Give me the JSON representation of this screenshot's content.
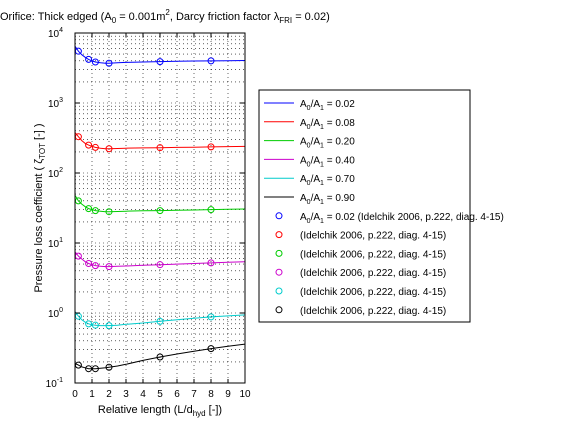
{
  "chart_data": {
    "type": "line",
    "title": "Orifice: Thick edged (A0 = 0.001m2, Darcy friction factor λFRI = 0.02)",
    "title_parts": {
      "p1": "Orifice: Thick edged (A",
      "p1_sub": "0",
      "p2": " = 0.001m",
      "p2_sup": "2",
      "p3": ", Darcy friction factor λ",
      "p3_sub": "FRI",
      "p4": " = 0.02)"
    },
    "xlabel": "Relative length (L/dhyd [-])",
    "xlabel_parts": {
      "main": "Relative length (L/d",
      "sub": "hyd",
      "tail": " [-])"
    },
    "ylabel": "Pressure loss coefficient (ζTOT [-])",
    "ylabel_parts": {
      "main": "Pressure loss coefficient ( ζ",
      "sub": "TOT",
      "tail": " [-] )"
    },
    "x_ticks": [
      "0",
      "1",
      "2",
      "3",
      "4",
      "5",
      "6",
      "7",
      "8",
      "9",
      "10"
    ],
    "y_ticks": [
      {
        "base": "10",
        "exp": "-1"
      },
      {
        "base": "10",
        "exp": "0"
      },
      {
        "base": "10",
        "exp": "1"
      },
      {
        "base": "10",
        "exp": "2"
      },
      {
        "base": "10",
        "exp": "3"
      },
      {
        "base": "10",
        "exp": "4"
      }
    ],
    "xlim": [
      0,
      10
    ],
    "ylim": [
      0.1,
      10000
    ],
    "y_scale": "log",
    "grid": true,
    "legend_position": "right, outside plot",
    "series": [
      {
        "name": "A0/A1 = 0.02",
        "label_main": "A",
        "label_sub1": "0",
        "label_mid": "/A",
        "label_sub2": "1",
        "label_tail": " = 0.02",
        "color": "#0000ff",
        "x": [
          0.0,
          0.2,
          0.4,
          0.6,
          0.8,
          1.0,
          1.2,
          1.5,
          1.8,
          2.0,
          2.5,
          3,
          4,
          5,
          6,
          7,
          8,
          9,
          10
        ],
        "y": [
          6500,
          5500,
          4900,
          4500,
          4200,
          4000,
          3850,
          3750,
          3700,
          3700,
          3750,
          3800,
          3850,
          3900,
          3950,
          3980,
          4000,
          4020,
          4050
        ]
      },
      {
        "name": "A0/A1 = 0.08",
        "label_main": "A",
        "label_sub1": "0",
        "label_mid": "/A",
        "label_sub2": "1",
        "label_tail": " = 0.08",
        "color": "#ff0000",
        "x": [
          0.0,
          0.2,
          0.4,
          0.6,
          0.8,
          1.0,
          1.2,
          1.5,
          1.8,
          2.0,
          2.5,
          3,
          4,
          5,
          6,
          7,
          8,
          9,
          10
        ],
        "y": [
          380,
          330,
          290,
          265,
          250,
          240,
          232,
          225,
          222,
          222,
          224,
          226,
          228,
          230,
          232,
          234,
          236,
          238,
          240
        ]
      },
      {
        "name": "A0/A1 = 0.20",
        "label_main": "A",
        "label_sub1": "0",
        "label_mid": "/A",
        "label_sub2": "1",
        "label_tail": " = 0.20",
        "color": "#00cc00",
        "x": [
          0.0,
          0.2,
          0.4,
          0.6,
          0.8,
          1.0,
          1.2,
          1.5,
          1.8,
          2.0,
          2.5,
          3,
          4,
          5,
          6,
          7,
          8,
          9,
          10
        ],
        "y": [
          48,
          40,
          36,
          33,
          31,
          30,
          29,
          28.5,
          28,
          28,
          28.2,
          28.5,
          28.8,
          29,
          29.3,
          29.6,
          30,
          30.3,
          30.6
        ]
      },
      {
        "name": "A0/A1 = 0.40",
        "label_main": "A",
        "label_sub1": "0",
        "label_mid": "/A",
        "label_sub2": "1",
        "label_tail": " = 0.40",
        "color": "#cc00cc",
        "x": [
          0.0,
          0.2,
          0.4,
          0.6,
          0.8,
          1.0,
          1.2,
          1.5,
          1.8,
          2.0,
          2.5,
          3,
          4,
          5,
          6,
          7,
          8,
          9,
          10
        ],
        "y": [
          7.5,
          6.5,
          5.9,
          5.4,
          5.1,
          4.9,
          4.75,
          4.65,
          4.6,
          4.6,
          4.65,
          4.7,
          4.8,
          4.9,
          5.0,
          5.1,
          5.2,
          5.3,
          5.4
        ]
      },
      {
        "name": "A0/A1 = 0.70",
        "label_main": "A",
        "label_sub1": "0",
        "label_mid": "/A",
        "label_sub2": "1",
        "label_tail": " = 0.70",
        "color": "#00cccc",
        "x": [
          0.0,
          0.2,
          0.4,
          0.6,
          0.8,
          1.0,
          1.2,
          1.5,
          1.8,
          2.0,
          2.5,
          3,
          4,
          5,
          6,
          7,
          8,
          9,
          10
        ],
        "y": [
          1.05,
          0.9,
          0.8,
          0.74,
          0.7,
          0.68,
          0.67,
          0.66,
          0.66,
          0.66,
          0.67,
          0.69,
          0.72,
          0.76,
          0.8,
          0.84,
          0.88,
          0.91,
          0.94
        ]
      },
      {
        "name": "A0/A1 = 0.90",
        "label_main": "A",
        "label_sub1": "0",
        "label_mid": "/A",
        "label_sub2": "1",
        "label_tail": " = 0.90",
        "color": "#000000",
        "x": [
          0.0,
          0.2,
          0.4,
          0.6,
          0.8,
          1.0,
          1.2,
          1.5,
          1.8,
          2.0,
          2.5,
          3,
          4,
          5,
          6,
          7,
          8,
          9,
          10
        ],
        "y": [
          0.19,
          0.18,
          0.17,
          0.165,
          0.16,
          0.16,
          0.16,
          0.162,
          0.165,
          0.168,
          0.175,
          0.185,
          0.21,
          0.235,
          0.26,
          0.285,
          0.31,
          0.335,
          0.36
        ]
      }
    ],
    "reference_points": [
      {
        "name": "A0/A1 = 0.02 (Idelchik 2006, p.222, diag. 4-15)",
        "label_main": "A",
        "label_sub1": "0",
        "label_mid": "/A",
        "label_sub2": "1",
        "label_tail": " = 0.02 (Idelchik 2006, p.222, diag. 4-15)",
        "color": "#0000ff",
        "x": [
          0.2,
          0.8,
          1.2,
          2.0,
          5.0,
          8.0
        ],
        "y": [
          5500,
          4200,
          3850,
          3700,
          3900,
          4000
        ]
      },
      {
        "name": "(Idelchik 2006, p.222, diag. 4-15)",
        "label_main": "(Idelchik 2006, p.222, diag. 4-15)",
        "color": "#ff0000",
        "x": [
          0.2,
          0.8,
          1.2,
          2.0,
          5.0,
          8.0
        ],
        "y": [
          330,
          250,
          232,
          222,
          230,
          236
        ]
      },
      {
        "name": "(Idelchik 2006, p.222, diag. 4-15)",
        "label_main": "(Idelchik 2006, p.222, diag. 4-15)",
        "color": "#00cc00",
        "x": [
          0.2,
          0.8,
          1.2,
          2.0,
          5.0,
          8.0
        ],
        "y": [
          40,
          31,
          29,
          28,
          29,
          30
        ]
      },
      {
        "name": "(Idelchik 2006, p.222, diag. 4-15)",
        "label_main": "(Idelchik 2006, p.222, diag. 4-15)",
        "color": "#cc00cc",
        "x": [
          0.2,
          0.8,
          1.2,
          2.0,
          5.0,
          8.0
        ],
        "y": [
          6.5,
          5.1,
          4.75,
          4.6,
          4.9,
          5.2
        ]
      },
      {
        "name": "(Idelchik 2006, p.222, diag. 4-15)",
        "label_main": "(Idelchik 2006, p.222, diag. 4-15)",
        "color": "#00cccc",
        "x": [
          0.2,
          0.8,
          1.2,
          2.0,
          5.0,
          8.0
        ],
        "y": [
          0.9,
          0.7,
          0.67,
          0.66,
          0.76,
          0.88
        ]
      },
      {
        "name": "(Idelchik 2006, p.222, diag. 4-15)",
        "label_main": "(Idelchik 2006, p.222, diag. 4-15)",
        "color": "#000000",
        "x": [
          0.2,
          0.8,
          1.2,
          2.0,
          5.0,
          8.0
        ],
        "y": [
          0.18,
          0.16,
          0.16,
          0.168,
          0.235,
          0.31
        ]
      }
    ]
  }
}
